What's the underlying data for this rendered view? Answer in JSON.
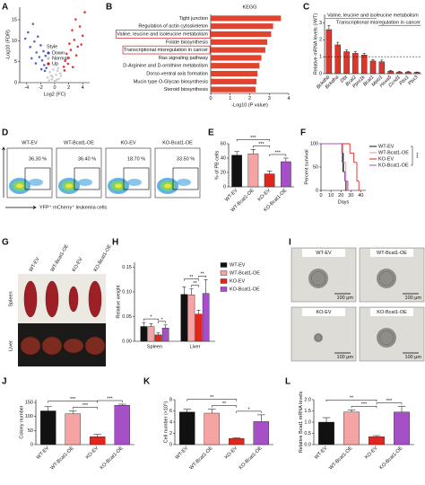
{
  "chart_data": [
    {
      "panel": "A",
      "type": "scatter",
      "ylabel": "-Log10 (FDR)",
      "xlabel": "Log2 (FC)",
      "legend_title": "Style",
      "xlim": [
        -5,
        5
      ],
      "xticks": [
        -4,
        -2,
        0,
        2,
        4
      ],
      "ylim": [
        0,
        18
      ],
      "yticks": [
        0,
        5,
        10,
        15
      ],
      "series": [
        {
          "name": "Down",
          "color": "#3a4bbf",
          "x": [
            -4.2,
            -3.8,
            -3.5,
            -3.1,
            -2.9,
            -2.6,
            -2.4,
            -2.2,
            -2.0,
            -1.8,
            -1.6,
            -1.5,
            -1.3,
            -1.2,
            -3.3,
            -2.7,
            -1.9,
            -1.4
          ],
          "y": [
            10.5,
            12,
            8.5,
            14,
            9.8,
            7.2,
            11,
            6.1,
            8.9,
            5.3,
            7.5,
            4.2,
            6.4,
            3.5,
            5.8,
            4.6,
            3.2,
            2.8
          ]
        },
        {
          "name": "Normal",
          "color": "#c4c4c4",
          "x": [
            -1.0,
            -0.7,
            -0.4,
            -0.2,
            0,
            0.2,
            0.4,
            0.6,
            0.9,
            -0.8,
            -0.3,
            0.3,
            0.8,
            -0.5,
            0.5,
            0.1
          ],
          "y": [
            1.2,
            2.5,
            0.8,
            3.1,
            0.4,
            1.9,
            2.8,
            0.9,
            1.6,
            0.5,
            1.4,
            0.7,
            2.2,
            1.7,
            3.4,
            0.2
          ]
        },
        {
          "name": "Up",
          "color": "#d7191c",
          "x": [
            1.3,
            1.5,
            1.7,
            1.9,
            2.1,
            2.3,
            2.5,
            2.8,
            3.0,
            3.3,
            3.6,
            4.0,
            4.3,
            1.4,
            2.0,
            2.6,
            3.1,
            3.8
          ],
          "y": [
            3.8,
            5.2,
            6.9,
            4.5,
            9.3,
            7.8,
            12.5,
            10.2,
            15.1,
            8.6,
            13.4,
            11.2,
            16.8,
            2.9,
            5.9,
            3.7,
            6.5,
            9.1
          ]
        }
      ]
    },
    {
      "panel": "B",
      "type": "bar",
      "orientation": "horizontal",
      "title": "KEGG",
      "xlabel": "-Log10 (P value)",
      "categories": [
        "Tight junction",
        "Regulation of actin cytoskeleton",
        "Valine, leucine and isoleucine metabolism",
        "Folate biosynthesis",
        "Transcriptional misregulation in cancer",
        "Ras signaling pathway",
        "D-Arginine and D-ornithine metabolism",
        "Dorso-ventral axis formation",
        "Mucin type O-Glycan biosynthesis",
        "Steroid biosynthesis"
      ],
      "values": [
        3.6,
        3.2,
        3.1,
        2.9,
        2.8,
        2.6,
        2.5,
        2.4,
        2.35,
        2.3
      ],
      "color": "#e0432e",
      "xlim": [
        0,
        4
      ],
      "xticks": [
        0,
        1,
        2,
        3,
        4
      ],
      "highlighted": [
        2,
        4
      ]
    },
    {
      "panel": "C",
      "type": "bar",
      "ylabel": "Relative mRNA levels (/WT)",
      "categories": [
        "Bckdhb",
        "Bckdha",
        "Dbt",
        "Bcat2",
        "Ppm1k",
        "Bcat1",
        "Meis1",
        "Hoxa5",
        "Ccnd1",
        "Pbx1",
        "Pbx3"
      ],
      "values": [
        2.6,
        1.7,
        1.3,
        1.2,
        1.1,
        0.75,
        0.7,
        0.15,
        0.1,
        0.1,
        0.08
      ],
      "errors": [
        0.25,
        0.15,
        0.1,
        0.1,
        0.1,
        0.08,
        0.1,
        0.05,
        0.03,
        0.03,
        0.02
      ],
      "color": "#d9372b",
      "ylim": [
        0,
        3.5
      ],
      "yticks": [
        0,
        1,
        2,
        3
      ],
      "reference_line": 1,
      "groups": [
        {
          "label": "Valine, leucine and isoleucine metabolism",
          "between": [
            0,
            5
          ]
        },
        {
          "label": "Transcriptional misregulation in cancer",
          "between": [
            6,
            10
          ]
        }
      ]
    },
    {
      "panel": "E",
      "type": "bar",
      "ylabel": "% of PB cells",
      "categories": [
        "WT-EV",
        "WT-Bcat1-OE",
        "KO-EV",
        "KO-Bcat1-OE"
      ],
      "values": [
        44,
        46,
        18,
        35
      ],
      "errors": [
        5,
        6,
        4,
        5
      ],
      "colors": [
        "#111111",
        "#f5a3a3",
        "#e2261d",
        "#a650c8"
      ],
      "ylim": [
        0,
        60
      ],
      "yticks": [
        0,
        20,
        40,
        60
      ],
      "significance": [
        {
          "label": "***",
          "between": [
            2,
            3
          ]
        },
        {
          "label": "***",
          "between": [
            1,
            2
          ]
        },
        {
          "label": "***",
          "between": [
            0,
            2
          ]
        }
      ]
    },
    {
      "panel": "F",
      "type": "line",
      "step": true,
      "ylabel": "Percent survival",
      "xlabel": "Days",
      "xlim": [
        0,
        45
      ],
      "xticks": [
        0,
        10,
        20,
        30,
        40
      ],
      "ylim": [
        0,
        100
      ],
      "yticks": [
        0,
        50,
        100
      ],
      "significance": "***",
      "series": [
        {
          "name": "WT-EV",
          "color": "#111111",
          "x": [
            0,
            21,
            22,
            24,
            25
          ],
          "y": [
            100,
            80,
            40,
            20,
            0
          ]
        },
        {
          "name": "WT-Bcat1-OE",
          "color": "#f08c8c",
          "x": [
            0,
            22,
            23,
            25,
            26
          ],
          "y": [
            100,
            80,
            60,
            20,
            0
          ]
        },
        {
          "name": "KO-EV",
          "color": "#e2261d",
          "x": [
            0,
            29,
            33,
            36,
            38
          ],
          "y": [
            100,
            80,
            60,
            20,
            0
          ]
        },
        {
          "name": "KO-Bcat1-OE",
          "color": "#a650c8",
          "x": [
            0,
            21,
            23,
            24,
            27
          ],
          "y": [
            100,
            60,
            40,
            20,
            0
          ]
        }
      ]
    },
    {
      "panel": "H",
      "type": "bar",
      "ylabel": "Relative weight",
      "categories": [
        "Spleen",
        "Liver"
      ],
      "series": [
        {
          "name": "WT-EV",
          "color": "#111111",
          "values": [
            0.03,
            0.095
          ],
          "errors": [
            0.008,
            0.015
          ]
        },
        {
          "name": "WT-Bcat1-OE",
          "color": "#f5a3a3",
          "values": [
            0.03,
            0.094
          ],
          "errors": [
            0.006,
            0.012
          ]
        },
        {
          "name": "KO-EV",
          "color": "#e2261d",
          "values": [
            0.013,
            0.055
          ],
          "errors": [
            0.004,
            0.008
          ]
        },
        {
          "name": "KO-Bcat1-OE",
          "color": "#a650c8",
          "values": [
            0.027,
            0.097
          ],
          "errors": [
            0.006,
            0.028
          ]
        }
      ],
      "ylim": [
        0,
        0.16
      ],
      "yticks": [
        {
          "value": 0,
          "label": "0.00"
        },
        0.05,
        {
          "value": 0.1,
          "label": "0.10"
        },
        0.15
      ],
      "significance": [
        {
          "label": "*",
          "group": 0,
          "between": [
            2,
            3
          ]
        },
        {
          "label": "*",
          "group": 0,
          "between": [
            0,
            2
          ]
        },
        {
          "label": "**",
          "group": 1,
          "between": [
            2,
            3
          ]
        },
        {
          "label": "**",
          "group": 1,
          "between": [
            1,
            2
          ]
        },
        {
          "label": "**",
          "group": 1,
          "between": [
            0,
            2
          ]
        }
      ]
    },
    {
      "panel": "J",
      "type": "bar",
      "ylabel": "Colony number",
      "categories": [
        "WT-EV",
        "WT-Bcat1-OE",
        "KO-EV",
        "KO-Bcat1-OE"
      ],
      "values": [
        120,
        110,
        28,
        140
      ],
      "errors": [
        15,
        10,
        8,
        4
      ],
      "colors": [
        "#111111",
        "#f5a3a3",
        "#e2261d",
        "#a650c8"
      ],
      "ylim": [
        0,
        160
      ],
      "yticks": [
        0,
        50,
        100,
        150
      ],
      "significance": [
        {
          "label": "***",
          "between": [
            2,
            3
          ]
        },
        {
          "label": "***",
          "between": [
            1,
            2
          ]
        },
        {
          "label": "***",
          "between": [
            0,
            2
          ]
        }
      ]
    },
    {
      "panel": "K",
      "type": "bar",
      "ylabel": "Cell number (×10⁵)",
      "categories": [
        "WT-EV",
        "WT-Bcat1-OE",
        "KO-EV",
        "KO-Bcat1-OE"
      ],
      "values": [
        5.8,
        5.6,
        1.1,
        4.1
      ],
      "errors": [
        0.5,
        0.7,
        0.1,
        1.2
      ],
      "colors": [
        "#111111",
        "#f5a3a3",
        "#e2261d",
        "#a650c8"
      ],
      "ylim": [
        0,
        8
      ],
      "yticks": [
        0,
        2,
        4,
        6,
        8
      ],
      "significance": [
        {
          "label": "*",
          "between": [
            2,
            3
          ]
        },
        {
          "label": "**",
          "between": [
            1,
            2
          ]
        },
        {
          "label": "**",
          "between": [
            0,
            2
          ]
        }
      ]
    },
    {
      "panel": "L",
      "type": "bar",
      "ylabel": "Relative Bcat1 mRNA levels",
      "categories": [
        "WT-EV",
        "WT-Bcat1-OE",
        "KO-EV",
        "KO-Bcat1-OE"
      ],
      "values": [
        1.0,
        1.45,
        0.35,
        1.45
      ],
      "errors": [
        0.2,
        0.1,
        0.05,
        0.25
      ],
      "colors": [
        "#111111",
        "#f5a3a3",
        "#e2261d",
        "#a650c8"
      ],
      "ylim": [
        0,
        2
      ],
      "yticks": [
        {
          "value": 0,
          "label": "0.0"
        },
        0.5,
        {
          "value": 1,
          "label": "1.0"
        },
        1.5,
        {
          "value": 2,
          "label": "2.0"
        }
      ],
      "significance": [
        {
          "label": "***",
          "between": [
            2,
            3
          ]
        },
        {
          "label": "***",
          "between": [
            1,
            2
          ]
        },
        {
          "label": "**",
          "between": [
            0,
            2
          ]
        }
      ]
    }
  ],
  "flow": {
    "panel": "D",
    "plots": [
      {
        "label": "WT-EV",
        "gate": "36.30 %"
      },
      {
        "label": "WT-Bcat1-OE",
        "gate": "36.40 %"
      },
      {
        "label": "KO-EV",
        "gate": "18.70 %"
      },
      {
        "label": "KO-Bcat1-OE",
        "gate": "33.50 %"
      }
    ],
    "xlabel": "YFP⁺ mCherry⁺ leukemia cells"
  },
  "organs": {
    "panel": "G",
    "groups": [
      "WT-EV",
      "WT-Bcat1-OE",
      "KO-EV",
      "KO-Bcat1-OE"
    ],
    "tissues": [
      "Spleen",
      "Liver"
    ]
  },
  "colonies": {
    "panel": "I",
    "images": [
      {
        "label": "WT-EV",
        "scale": "100 μm"
      },
      {
        "label": "WT-Bcat1-OE",
        "scale": "100 μm"
      },
      {
        "label": "KO-EV",
        "scale": "100 μm"
      },
      {
        "label": "KO-Bcat1-OE",
        "scale": "100 μm"
      }
    ]
  }
}
